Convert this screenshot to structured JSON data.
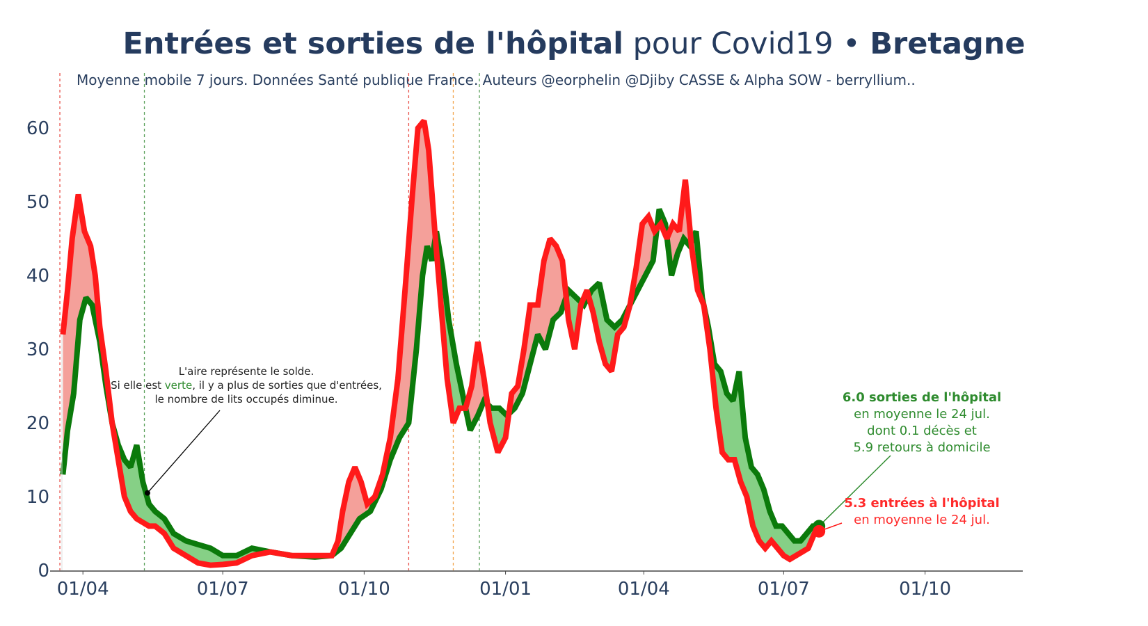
{
  "chart_data": {
    "type": "area",
    "title": {
      "part1": "Entrées et sorties de l'hôpital",
      "part2": " pour Covid19 • ",
      "part3": "Bretagne"
    },
    "subtitle": "Moyenne mobile 7 jours. Données Santé publique France. Auteurs @eorphelin @Djiby CASSE & Alpha SOW - berryllium..",
    "xlabel": "",
    "ylabel": "",
    "ylim": [
      0,
      67
    ],
    "xlim": [
      "2020-03-12",
      "2021-11-20"
    ],
    "yticks": [
      0,
      10,
      20,
      30,
      40,
      50,
      60
    ],
    "xticks": [
      {
        "date": "2020-04-01",
        "label": "01/04"
      },
      {
        "date": "2020-07-01",
        "label": "01/07"
      },
      {
        "date": "2020-10-01",
        "label": "01/10"
      },
      {
        "date": "2021-01-01",
        "label": "01/01"
      },
      {
        "date": "2021-04-01",
        "label": "01/04"
      },
      {
        "date": "2021-07-01",
        "label": "01/07"
      },
      {
        "date": "2021-10-01",
        "label": "01/10"
      }
    ],
    "vlines": [
      {
        "date": "2020-03-17",
        "color": "#e8514a"
      },
      {
        "date": "2020-05-11",
        "color": "#5aa05a"
      },
      {
        "date": "2020-10-30",
        "color": "#e8514a"
      },
      {
        "date": "2020-11-28",
        "color": "#f2a34a"
      },
      {
        "date": "2020-12-15",
        "color": "#5aa05a"
      }
    ],
    "series": [
      {
        "name": "sorties de l'hôpital",
        "color": "#0b7a0b",
        "points": [
          [
            "2020-03-19",
            13
          ],
          [
            "2020-03-22",
            19
          ],
          [
            "2020-03-26",
            24
          ],
          [
            "2020-03-30",
            34
          ],
          [
            "2020-04-03",
            37
          ],
          [
            "2020-04-07",
            36
          ],
          [
            "2020-04-12",
            31
          ],
          [
            "2020-04-16",
            25
          ],
          [
            "2020-04-20",
            20
          ],
          [
            "2020-04-24",
            17
          ],
          [
            "2020-04-28",
            15
          ],
          [
            "2020-05-02",
            14
          ],
          [
            "2020-05-06",
            17
          ],
          [
            "2020-05-10",
            12
          ],
          [
            "2020-05-14",
            9
          ],
          [
            "2020-05-18",
            8
          ],
          [
            "2020-05-24",
            7
          ],
          [
            "2020-05-30",
            5
          ],
          [
            "2020-06-07",
            4
          ],
          [
            "2020-06-15",
            3.5
          ],
          [
            "2020-06-23",
            3
          ],
          [
            "2020-07-01",
            2
          ],
          [
            "2020-07-10",
            2
          ],
          [
            "2020-07-20",
            3
          ],
          [
            "2020-08-01",
            2.5
          ],
          [
            "2020-08-15",
            2
          ],
          [
            "2020-08-30",
            1.8
          ],
          [
            "2020-09-10",
            2
          ],
          [
            "2020-09-16",
            3
          ],
          [
            "2020-09-22",
            5
          ],
          [
            "2020-09-28",
            7
          ],
          [
            "2020-10-05",
            8
          ],
          [
            "2020-10-12",
            11
          ],
          [
            "2020-10-18",
            15
          ],
          [
            "2020-10-24",
            18
          ],
          [
            "2020-10-30",
            20
          ],
          [
            "2020-11-04",
            30
          ],
          [
            "2020-11-08",
            40
          ],
          [
            "2020-11-11",
            44
          ],
          [
            "2020-11-14",
            42
          ],
          [
            "2020-11-17",
            46
          ],
          [
            "2020-11-21",
            41
          ],
          [
            "2020-11-25",
            34
          ],
          [
            "2020-11-30",
            28
          ],
          [
            "2020-12-04",
            24
          ],
          [
            "2020-12-09",
            19
          ],
          [
            "2020-12-14",
            21
          ],
          [
            "2020-12-18",
            23
          ],
          [
            "2020-12-23",
            22
          ],
          [
            "2020-12-28",
            22
          ],
          [
            "2021-01-02",
            21
          ],
          [
            "2021-01-07",
            22
          ],
          [
            "2021-01-12",
            24
          ],
          [
            "2021-01-17",
            28
          ],
          [
            "2021-01-22",
            32
          ],
          [
            "2021-01-27",
            30
          ],
          [
            "2021-02-01",
            34
          ],
          [
            "2021-02-06",
            35
          ],
          [
            "2021-02-11",
            38
          ],
          [
            "2021-02-16",
            37
          ],
          [
            "2021-02-21",
            36
          ],
          [
            "2021-02-26",
            38
          ],
          [
            "2021-03-03",
            39
          ],
          [
            "2021-03-08",
            34
          ],
          [
            "2021-03-13",
            33
          ],
          [
            "2021-03-18",
            34
          ],
          [
            "2021-03-23",
            36
          ],
          [
            "2021-03-28",
            38
          ],
          [
            "2021-04-02",
            40
          ],
          [
            "2021-04-07",
            42
          ],
          [
            "2021-04-11",
            49
          ],
          [
            "2021-04-15",
            47
          ],
          [
            "2021-04-19",
            40
          ],
          [
            "2021-04-23",
            43
          ],
          [
            "2021-04-27",
            45
          ],
          [
            "2021-05-01",
            44
          ],
          [
            "2021-05-05",
            46
          ],
          [
            "2021-05-09",
            37
          ],
          [
            "2021-05-13",
            33
          ],
          [
            "2021-05-17",
            28
          ],
          [
            "2021-05-21",
            27
          ],
          [
            "2021-05-25",
            24
          ],
          [
            "2021-05-29",
            23
          ],
          [
            "2021-06-02",
            27
          ],
          [
            "2021-06-06",
            18
          ],
          [
            "2021-06-10",
            14
          ],
          [
            "2021-06-14",
            13
          ],
          [
            "2021-06-18",
            11
          ],
          [
            "2021-06-22",
            8
          ],
          [
            "2021-06-26",
            6
          ],
          [
            "2021-06-30",
            6
          ],
          [
            "2021-07-04",
            5
          ],
          [
            "2021-07-08",
            4
          ],
          [
            "2021-07-12",
            4
          ],
          [
            "2021-07-16",
            5
          ],
          [
            "2021-07-20",
            6
          ],
          [
            "2021-07-24",
            6
          ]
        ]
      },
      {
        "name": "entrées à l'hôpital",
        "color": "#ff1a1a",
        "points": [
          [
            "2020-03-19",
            32
          ],
          [
            "2020-03-22",
            38
          ],
          [
            "2020-03-25",
            45
          ],
          [
            "2020-03-29",
            51
          ],
          [
            "2020-04-02",
            46
          ],
          [
            "2020-04-06",
            44
          ],
          [
            "2020-04-09",
            40
          ],
          [
            "2020-04-12",
            33
          ],
          [
            "2020-04-16",
            27
          ],
          [
            "2020-04-20",
            20
          ],
          [
            "2020-04-24",
            15
          ],
          [
            "2020-04-28",
            10
          ],
          [
            "2020-05-02",
            8
          ],
          [
            "2020-05-06",
            7
          ],
          [
            "2020-05-10",
            6.5
          ],
          [
            "2020-05-14",
            6
          ],
          [
            "2020-05-18",
            6
          ],
          [
            "2020-05-24",
            5
          ],
          [
            "2020-05-30",
            3
          ],
          [
            "2020-06-07",
            2
          ],
          [
            "2020-06-15",
            1
          ],
          [
            "2020-06-23",
            0.7
          ],
          [
            "2020-07-01",
            0.8
          ],
          [
            "2020-07-10",
            1
          ],
          [
            "2020-07-20",
            2
          ],
          [
            "2020-08-01",
            2.5
          ],
          [
            "2020-08-15",
            2
          ],
          [
            "2020-08-30",
            2
          ],
          [
            "2020-09-10",
            2
          ],
          [
            "2020-09-14",
            4
          ],
          [
            "2020-09-17",
            8
          ],
          [
            "2020-09-21",
            12
          ],
          [
            "2020-09-25",
            14
          ],
          [
            "2020-09-29",
            12
          ],
          [
            "2020-10-03",
            9
          ],
          [
            "2020-10-08",
            10
          ],
          [
            "2020-10-13",
            13
          ],
          [
            "2020-10-18",
            18
          ],
          [
            "2020-10-23",
            26
          ],
          [
            "2020-10-28",
            39
          ],
          [
            "2020-11-01",
            50
          ],
          [
            "2020-11-05",
            60
          ],
          [
            "2020-11-09",
            61
          ],
          [
            "2020-11-12",
            57
          ],
          [
            "2020-11-16",
            46
          ],
          [
            "2020-11-20",
            36
          ],
          [
            "2020-11-24",
            26
          ],
          [
            "2020-11-28",
            20
          ],
          [
            "2020-12-02",
            22
          ],
          [
            "2020-12-06",
            22
          ],
          [
            "2020-12-10",
            25
          ],
          [
            "2020-12-14",
            31
          ],
          [
            "2020-12-18",
            26
          ],
          [
            "2020-12-22",
            20
          ],
          [
            "2020-12-27",
            16
          ],
          [
            "2021-01-01",
            18
          ],
          [
            "2021-01-05",
            24
          ],
          [
            "2021-01-09",
            25
          ],
          [
            "2021-01-13",
            30
          ],
          [
            "2021-01-17",
            36
          ],
          [
            "2021-01-22",
            36
          ],
          [
            "2021-01-26",
            42
          ],
          [
            "2021-01-30",
            45
          ],
          [
            "2021-02-03",
            44
          ],
          [
            "2021-02-07",
            42
          ],
          [
            "2021-02-11",
            34
          ],
          [
            "2021-02-15",
            30
          ],
          [
            "2021-02-19",
            36
          ],
          [
            "2021-02-23",
            38
          ],
          [
            "2021-02-27",
            35
          ],
          [
            "2021-03-03",
            31
          ],
          [
            "2021-03-07",
            28
          ],
          [
            "2021-03-11",
            27
          ],
          [
            "2021-03-15",
            32
          ],
          [
            "2021-03-19",
            33
          ],
          [
            "2021-03-23",
            36
          ],
          [
            "2021-03-27",
            41
          ],
          [
            "2021-03-31",
            47
          ],
          [
            "2021-04-04",
            48
          ],
          [
            "2021-04-08",
            46
          ],
          [
            "2021-04-12",
            47
          ],
          [
            "2021-04-16",
            45
          ],
          [
            "2021-04-20",
            47
          ],
          [
            "2021-04-24",
            46
          ],
          [
            "2021-04-28",
            53
          ],
          [
            "2021-05-02",
            44
          ],
          [
            "2021-05-06",
            38
          ],
          [
            "2021-05-10",
            36
          ],
          [
            "2021-05-14",
            30
          ],
          [
            "2021-05-18",
            22
          ],
          [
            "2021-05-22",
            16
          ],
          [
            "2021-05-26",
            15
          ],
          [
            "2021-05-30",
            15
          ],
          [
            "2021-06-03",
            12
          ],
          [
            "2021-06-07",
            10
          ],
          [
            "2021-06-11",
            6
          ],
          [
            "2021-06-15",
            4
          ],
          [
            "2021-06-19",
            3
          ],
          [
            "2021-06-23",
            4
          ],
          [
            "2021-06-27",
            3
          ],
          [
            "2021-07-01",
            2
          ],
          [
            "2021-07-05",
            1.5
          ],
          [
            "2021-07-09",
            2
          ],
          [
            "2021-07-13",
            2.5
          ],
          [
            "2021-07-17",
            3
          ],
          [
            "2021-07-21",
            5
          ],
          [
            "2021-07-24",
            5.3
          ]
        ]
      }
    ],
    "fill_colors": {
      "positive_balance": "#f4a09a",
      "negative_balance": "#86d086"
    },
    "annotations": {
      "explain": {
        "line1": "L'aire représente le solde.",
        "line2_a": "Si elle est ",
        "line2_b": "verte",
        "line2_c": ", il y a plus de sorties que d'entrées,",
        "line3": "le nombre de lits occupés diminue.",
        "target_date": "2020-05-13",
        "target_y": 10.5
      },
      "sorties": {
        "title": "6.0 sorties de l'hôpital",
        "line1": "en moyenne le 24 jul.",
        "line2": "dont 0.1 décès et",
        "line3": "5.9 retours à domicile",
        "date": "2021-07-24",
        "value": 6.0
      },
      "entrees": {
        "title": "5.3 entrées à l'hôpital",
        "line1": "en moyenne le 24 jul.",
        "date": "2021-07-24",
        "value": 5.3
      }
    }
  }
}
